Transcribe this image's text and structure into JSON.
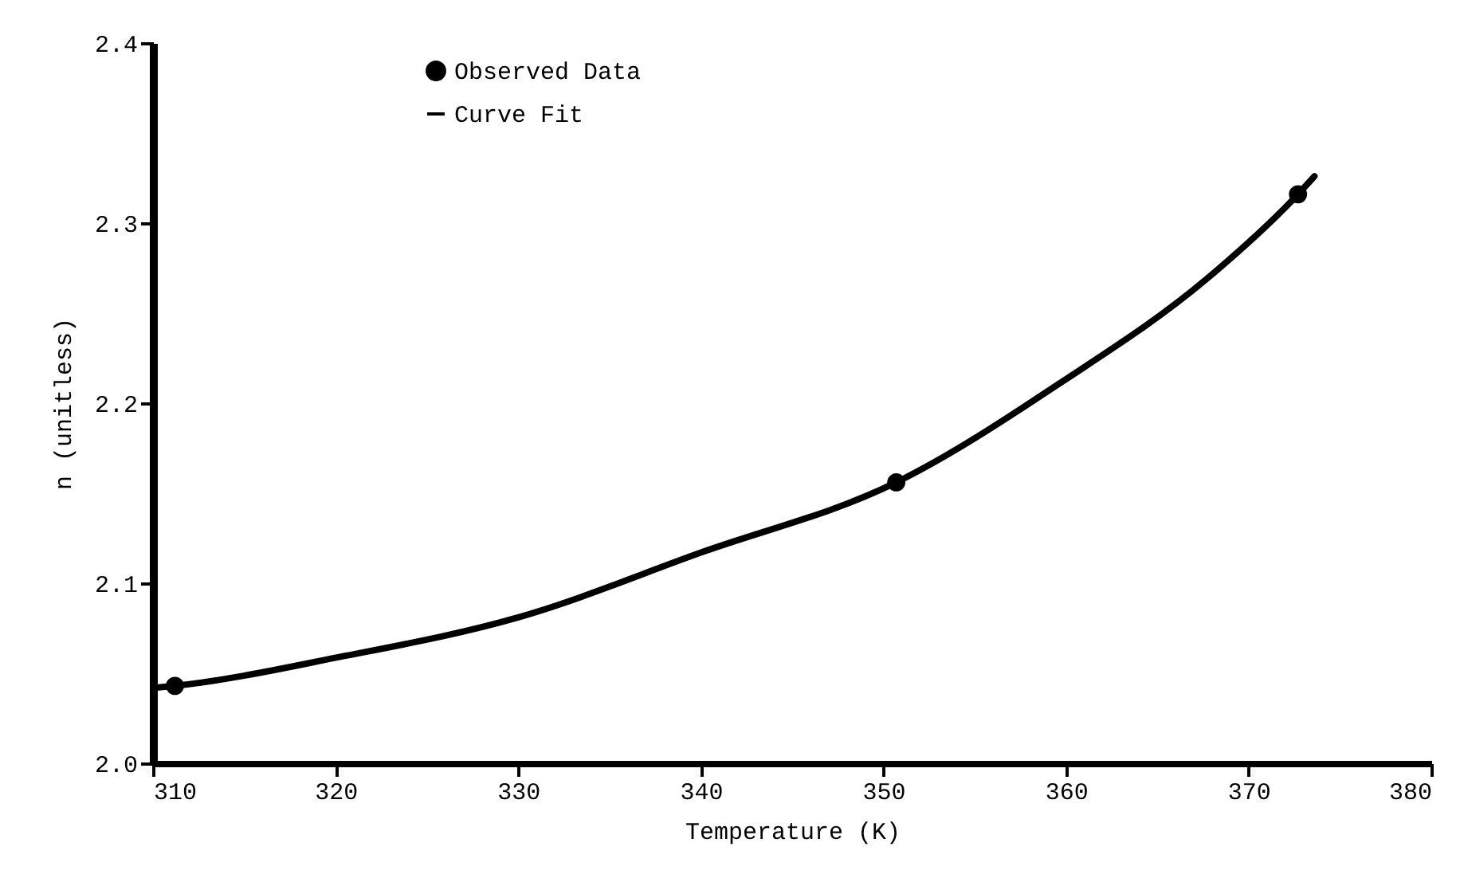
{
  "chart_data": {
    "type": "line",
    "xlabel": "Temperature (K)",
    "ylabel": "n (unitless)",
    "xlim": [
      310,
      380
    ],
    "ylim": [
      2.0,
      2.4
    ],
    "xticks": [
      310,
      320,
      330,
      340,
      350,
      360,
      370,
      380
    ],
    "yticks": [
      {
        "value": 2.0,
        "label": "2.0"
      },
      2.1,
      2.2,
      2.3,
      2.4
    ],
    "grid": false,
    "legend": "top left",
    "series": [
      {
        "name": "Observed Data",
        "type": "scatter",
        "marker": "circle",
        "color": "#000000",
        "x": [
          311.2,
          350.7,
          372.7
        ],
        "values": [
          2.043,
          2.156,
          2.316
        ]
      },
      {
        "name": "Curve Fit",
        "type": "line",
        "line_style": "solid",
        "color": "#000000",
        "x": [
          310.2,
          311.2,
          320.2,
          330,
          340,
          350.7,
          359.8,
          367.7,
          372.7,
          373.6
        ],
        "values": [
          2.042,
          2.043,
          2.059,
          2.081,
          2.117,
          2.156,
          2.212,
          2.269,
          2.316,
          2.326
        ]
      }
    ]
  }
}
